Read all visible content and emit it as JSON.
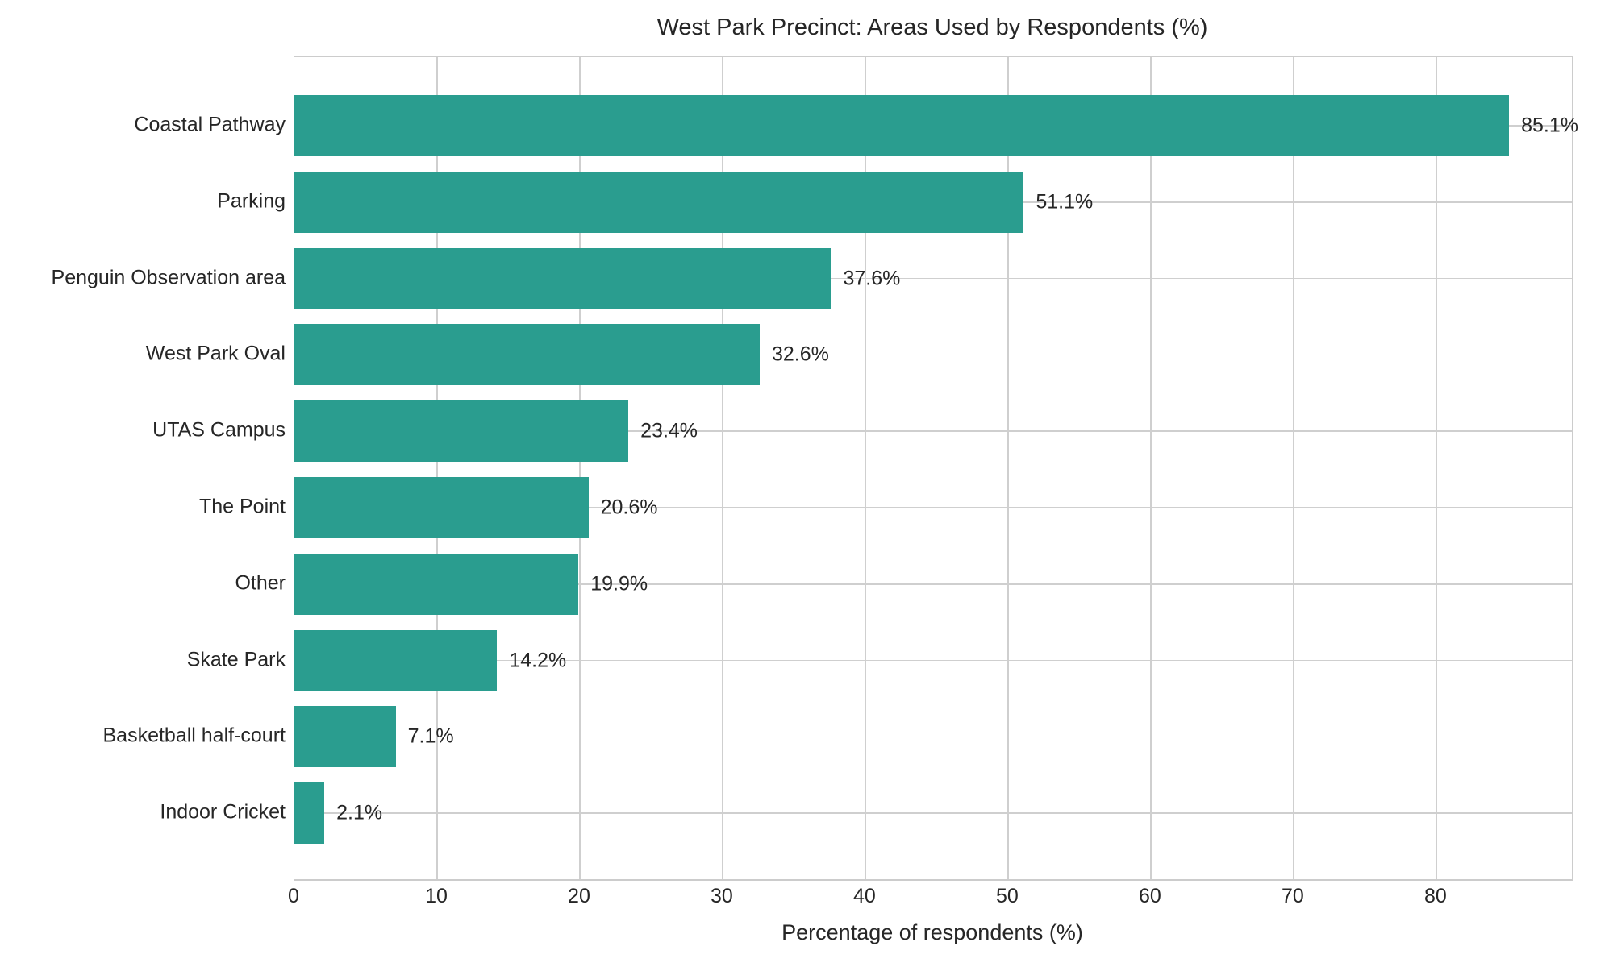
{
  "chart_data": {
    "type": "bar",
    "orientation": "horizontal",
    "title": "West Park Precinct: Areas Used by Respondents (%)",
    "xlabel": "Percentage of respondents (%)",
    "ylabel": "",
    "categories": [
      "Coastal Pathway",
      "Parking",
      "Penguin Observation area",
      "West Park Oval",
      "UTAS Campus",
      "The Point",
      "Other",
      "Skate Park",
      "Basketball half-court",
      "Indoor Cricket"
    ],
    "values": [
      85.1,
      51.1,
      37.6,
      32.6,
      23.4,
      20.6,
      19.9,
      14.2,
      7.1,
      2.1
    ],
    "value_labels": [
      "85.1%",
      "51.1%",
      "37.6%",
      "32.6%",
      "23.4%",
      "20.6%",
      "19.9%",
      "14.2%",
      "7.1%",
      "2.1%"
    ],
    "xticks": [
      0,
      10,
      20,
      30,
      40,
      50,
      60,
      70,
      80
    ],
    "xtick_labels": [
      "0",
      "10",
      "20",
      "30",
      "40",
      "50",
      "60",
      "70",
      "80"
    ],
    "xlim": [
      0,
      89.5
    ],
    "grid": true,
    "legend": false,
    "colors": {
      "bar": "#2a9d8f",
      "grid": "#cfcfcf",
      "spine": "#cccccc",
      "text": "#262626",
      "background": "#ffffff"
    }
  }
}
